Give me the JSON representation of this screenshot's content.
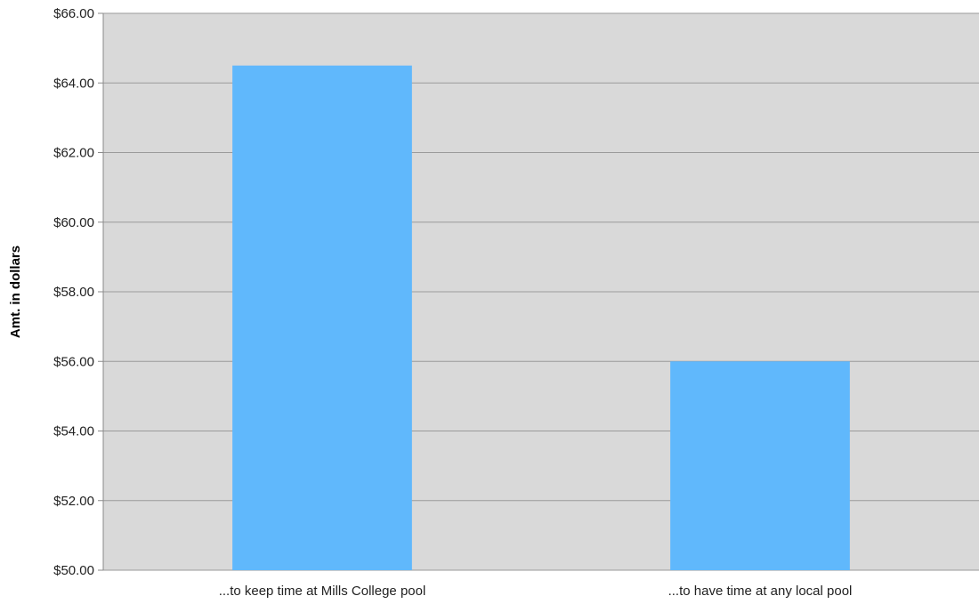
{
  "chart_data": {
    "type": "bar",
    "title": "",
    "xlabel": "",
    "ylabel": "Amt. in dollars",
    "categories": [
      "...to keep time at Mills College pool",
      "...to have time at any local pool"
    ],
    "values": [
      64.5,
      56.0
    ],
    "ylim": [
      50,
      66
    ],
    "yticks": [
      50,
      52,
      54,
      56,
      58,
      60,
      62,
      64,
      66
    ],
    "ytick_labels": [
      "$50.00",
      "$52.00",
      "$54.00",
      "$56.00",
      "$58.00",
      "$60.00",
      "$62.00",
      "$64.00",
      "$66.00"
    ],
    "grid": true,
    "legend": "none"
  },
  "colors": {
    "bar": "#60b8fc",
    "plot_background": "#d9d9d9",
    "gridline": "#9a9a9a",
    "axis": "#8a8a8a"
  }
}
